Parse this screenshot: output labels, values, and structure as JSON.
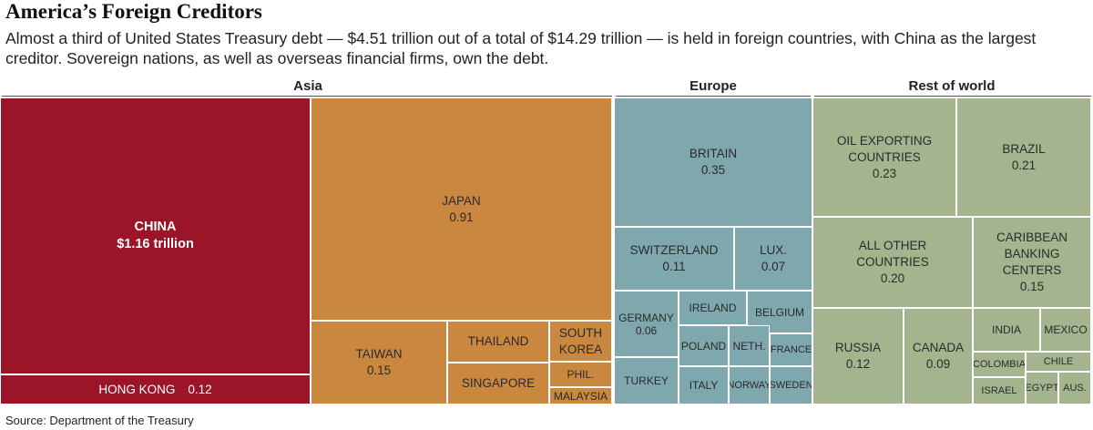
{
  "title": "America’s Foreign Creditors",
  "subtitle": "Almost a third of United States Treasury debt — $4.51 trillion out of a total of $14.29 trillion — is held in foreign countries, with China as the largest creditor. Sovereign nations, as well as overseas financial firms, own the debt.",
  "source": "Source: Department of the Treasury",
  "colors": {
    "asia_china": "#9b1428",
    "asia": "#c98740",
    "europe": "#7fa7ae",
    "rest": "#a3b48e"
  },
  "chart_data": {
    "type": "treemap",
    "units": "trillions of dollars",
    "regions": [
      {
        "name": "Asia",
        "items": [
          {
            "label": "CHINA",
            "value_text": "$1.16 trillion",
            "value": 1.16
          },
          {
            "label": "HONG KONG",
            "value_text": "0.12",
            "value": 0.12
          },
          {
            "label": "JAPAN",
            "value_text": "0.91",
            "value": 0.91
          },
          {
            "label": "TAIWAN",
            "value_text": "0.15",
            "value": 0.15
          },
          {
            "label": "THAILAND",
            "value_text": "",
            "value": null
          },
          {
            "label": "SINGAPORE",
            "value_text": "",
            "value": null
          },
          {
            "label": "SOUTH KOREA",
            "value_text": "",
            "value": null
          },
          {
            "label": "PHIL.",
            "value_text": "",
            "value": null
          },
          {
            "label": "MALAYSIA",
            "value_text": "",
            "value": null
          }
        ]
      },
      {
        "name": "Europe",
        "items": [
          {
            "label": "BRITAIN",
            "value_text": "0.35",
            "value": 0.35
          },
          {
            "label": "SWITZERLAND",
            "value_text": "0.11",
            "value": 0.11
          },
          {
            "label": "LUX.",
            "value_text": "0.07",
            "value": 0.07
          },
          {
            "label": "GERMANY",
            "value_text": "0.06",
            "value": 0.06
          },
          {
            "label": "IRELAND",
            "value_text": "",
            "value": null
          },
          {
            "label": "BELGIUM",
            "value_text": "",
            "value": null
          },
          {
            "label": "POLAND",
            "value_text": "",
            "value": null
          },
          {
            "label": "NETH.",
            "value_text": "",
            "value": null
          },
          {
            "label": "FRANCE",
            "value_text": "",
            "value": null
          },
          {
            "label": "TURKEY",
            "value_text": "",
            "value": null
          },
          {
            "label": "ITALY",
            "value_text": "",
            "value": null
          },
          {
            "label": "NORWAY",
            "value_text": "",
            "value": null
          },
          {
            "label": "SWEDEN",
            "value_text": "",
            "value": null
          }
        ]
      },
      {
        "name": "Rest of world",
        "items": [
          {
            "label": "OIL EXPORTING COUNTRIES",
            "value_text": "0.23",
            "value": 0.23
          },
          {
            "label": "BRAZIL",
            "value_text": "0.21",
            "value": 0.21
          },
          {
            "label": "ALL OTHER COUNTRIES",
            "value_text": "0.20",
            "value": 0.2
          },
          {
            "label": "CARIBBEAN BANKING CENTERS",
            "value_text": "0.15",
            "value": 0.15
          },
          {
            "label": "RUSSIA",
            "value_text": "0.12",
            "value": 0.12
          },
          {
            "label": "CANADA",
            "value_text": "0.09",
            "value": 0.09
          },
          {
            "label": "INDIA",
            "value_text": "",
            "value": null
          },
          {
            "label": "MEXICO",
            "value_text": "",
            "value": null
          },
          {
            "label": "COLOMBIA",
            "value_text": "",
            "value": null
          },
          {
            "label": "CHILE",
            "value_text": "",
            "value": null
          },
          {
            "label": "ISRAEL",
            "value_text": "",
            "value": null
          },
          {
            "label": "EGYPT",
            "value_text": "",
            "value": null
          },
          {
            "label": "AUS.",
            "value_text": "",
            "value": null
          }
        ]
      }
    ]
  }
}
